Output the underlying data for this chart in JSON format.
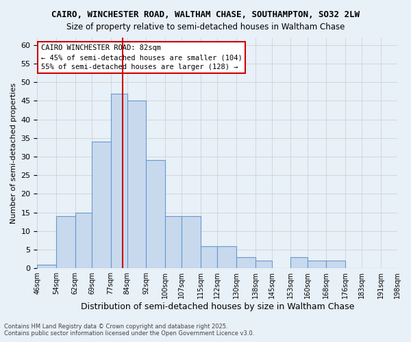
{
  "title1": "CAIRO, WINCHESTER ROAD, WALTHAM CHASE, SOUTHAMPTON, SO32 2LW",
  "title2": "Size of property relative to semi-detached houses in Waltham Chase",
  "xlabel": "Distribution of semi-detached houses by size in Waltham Chase",
  "ylabel": "Number of semi-detached properties",
  "footer1": "Contains HM Land Registry data © Crown copyright and database right 2025.",
  "footer2": "Contains public sector information licensed under the Open Government Licence v3.0.",
  "annotation_title": "CAIRO WINCHESTER ROAD: 82sqm",
  "annotation_line1": "← 45% of semi-detached houses are smaller (104)",
  "annotation_line2": "55% of semi-detached houses are larger (128) →",
  "property_size": 82,
  "bar_color": "#c8d9ee",
  "bar_edge_color": "#6699cc",
  "vline_color": "#cc0000",
  "grid_color": "#cccccc",
  "background_color": "#e8f0f8",
  "bins": [
    46,
    54,
    62,
    69,
    77,
    84,
    92,
    100,
    107,
    115,
    122,
    130,
    138,
    145,
    153,
    160,
    168,
    176,
    183,
    191,
    198
  ],
  "bin_labels": [
    "46sqm",
    "54sqm",
    "62sqm",
    "69sqm",
    "77sqm",
    "84sqm",
    "92sqm",
    "100sqm",
    "107sqm",
    "115sqm",
    "122sqm",
    "130sqm",
    "138sqm",
    "145sqm",
    "153sqm",
    "160sqm",
    "168sqm",
    "176sqm",
    "183sqm",
    "191sqm",
    "198sqm"
  ],
  "counts": [
    1,
    14,
    15,
    34,
    47,
    45,
    29,
    14,
    14,
    6,
    6,
    3,
    2,
    0,
    3,
    2,
    2,
    0,
    0,
    0
  ],
  "ylim": [
    0,
    62
  ],
  "yticks": [
    0,
    5,
    10,
    15,
    20,
    25,
    30,
    35,
    40,
    45,
    50,
    55,
    60
  ]
}
